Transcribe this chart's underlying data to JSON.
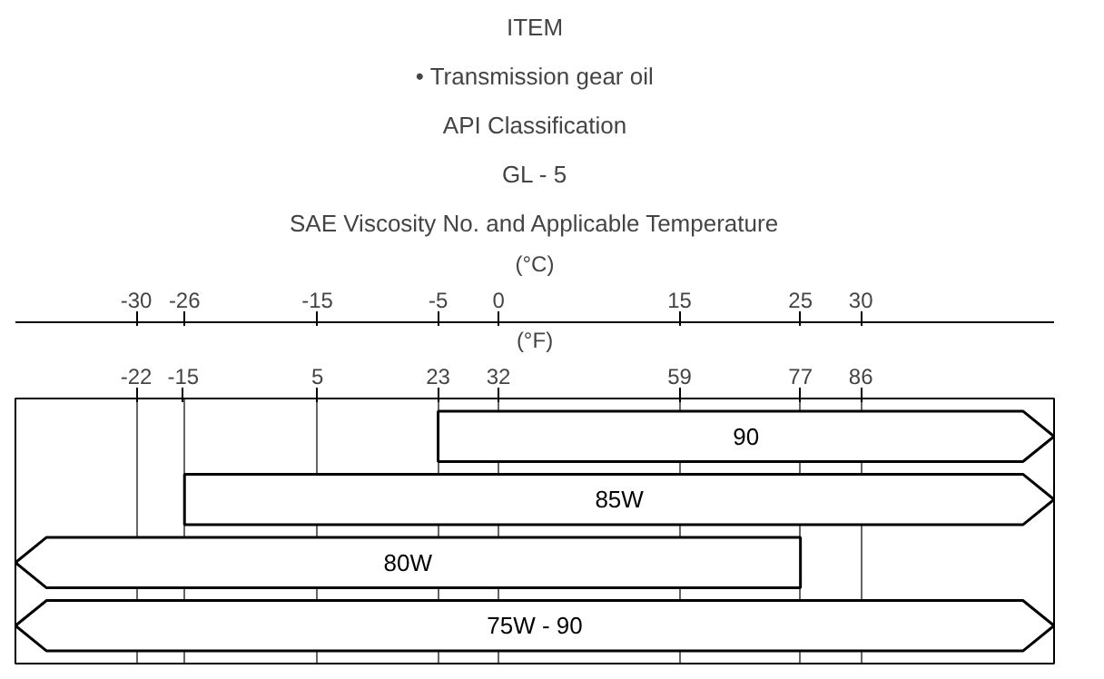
{
  "chart_data": {
    "type": "bar",
    "orientation": "horizontal",
    "title": "ITEM",
    "subtitle": "• Transmission gear oil",
    "annotations": [
      "API Classification",
      "GL - 5",
      "SAE Viscosity No. and Applicable Temperature"
    ],
    "categories": [
      "90",
      "85W",
      "80W",
      "75W - 90"
    ],
    "base": [
      -5,
      -26,
      -40,
      -40
    ],
    "values": [
      51,
      72,
      65,
      86
    ],
    "color": "#ffffff",
    "xlabel": "(°C)",
    "x2label": "(°F)",
    "xlim": [
      -40,
      46
    ],
    "xticks": [
      -30,
      -26,
      -15,
      -5,
      0,
      15,
      25,
      30
    ],
    "x2lim": [
      -40,
      114.8
    ],
    "x2ticks": [
      -22,
      -15,
      5,
      23,
      32,
      59,
      77,
      86
    ],
    "grid": "x",
    "tick_labels": "x"
  }
}
